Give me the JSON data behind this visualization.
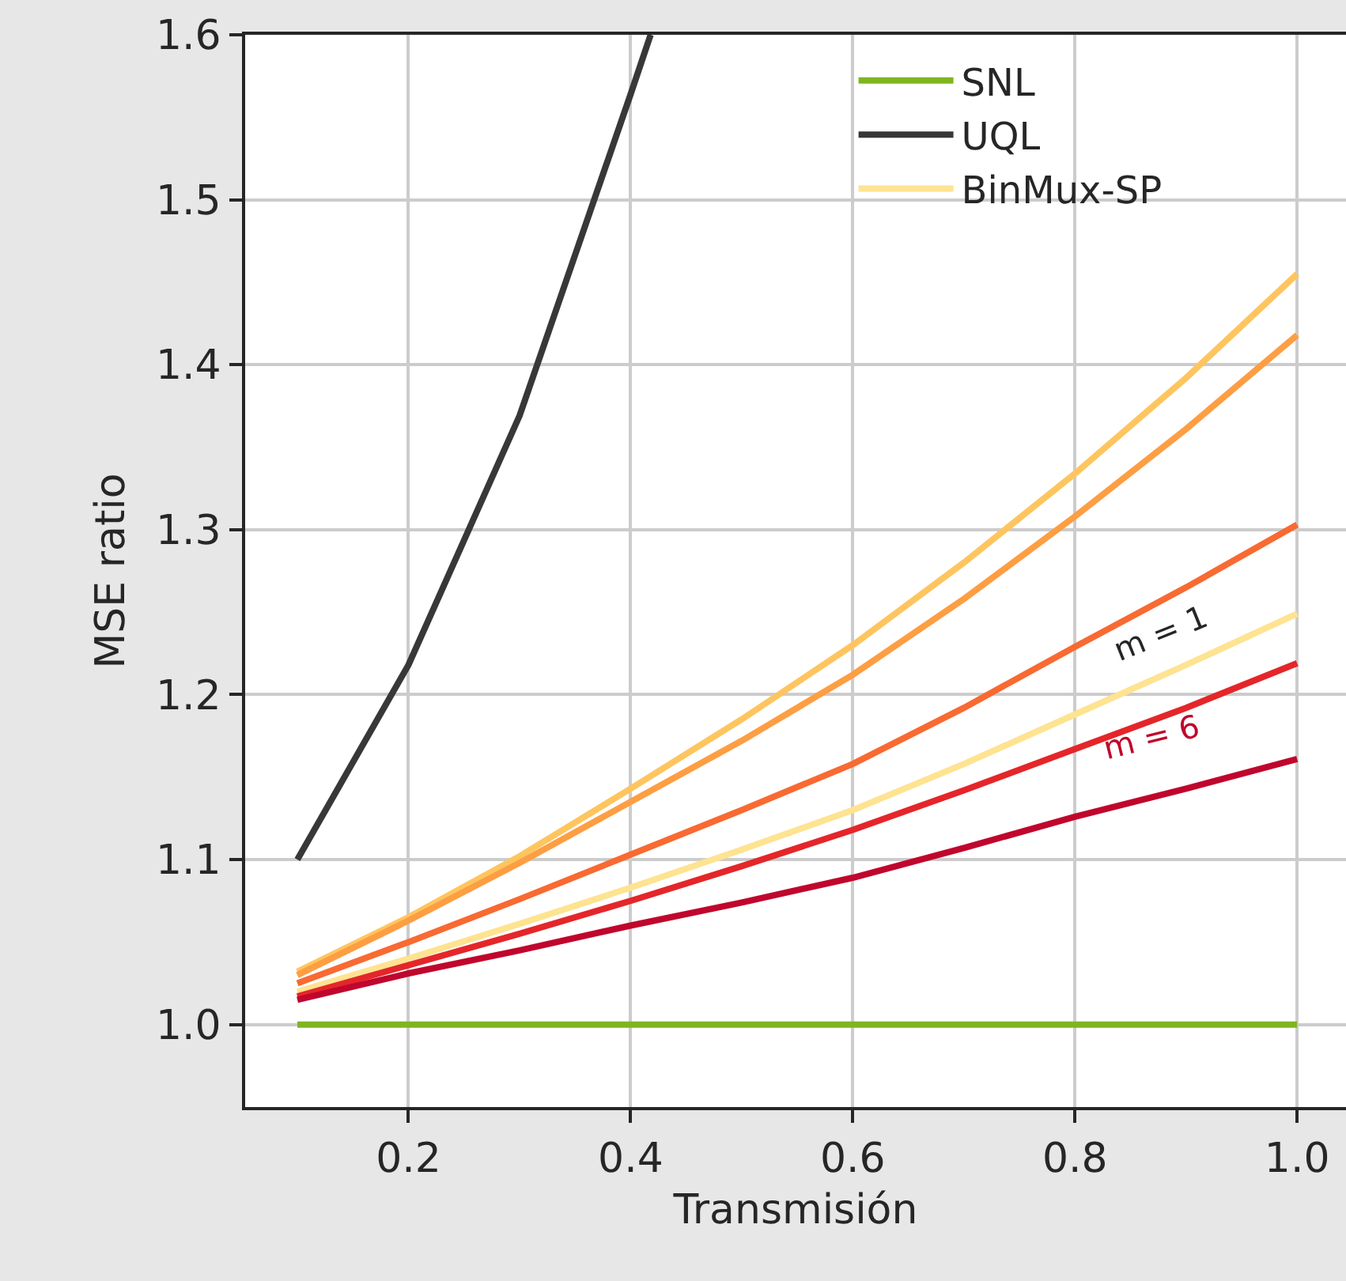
{
  "chart_data": {
    "type": "line",
    "xlabel": "Transmisión",
    "ylabel": "MSE ratio",
    "x": [
      0.1,
      0.2,
      0.3,
      0.4,
      0.5,
      0.6,
      0.7,
      0.8,
      0.9,
      1.0
    ],
    "series": [
      {
        "name": "SNL",
        "color": "#7fb51f",
        "values": [
          1.0,
          1.0,
          1.0,
          1.0,
          1.0,
          1.0,
          1.0,
          1.0,
          1.0,
          1.0
        ]
      },
      {
        "name": "UQL",
        "color": "#383838",
        "x": [
          0.1,
          0.2,
          0.3,
          0.4,
          0.418
        ],
        "values": [
          1.1,
          1.218,
          1.369,
          1.564,
          1.6
        ]
      },
      {
        "name": "BinMux-SP",
        "color": "#fee391",
        "values": [
          1.02,
          1.04,
          1.061,
          1.083,
          1.106,
          1.13,
          1.158,
          1.188,
          1.218,
          1.249
        ]
      },
      {
        "color": "#fec55f",
        "values": [
          1.032,
          1.065,
          1.102,
          1.143,
          1.185,
          1.23,
          1.28,
          1.334,
          1.392,
          1.455
        ]
      },
      {
        "color": "#fd9e43",
        "values": [
          1.03,
          1.063,
          1.098,
          1.135,
          1.172,
          1.212,
          1.258,
          1.308,
          1.361,
          1.418
        ]
      },
      {
        "color": "#f86a32",
        "values": [
          1.025,
          1.05,
          1.076,
          1.103,
          1.13,
          1.158,
          1.192,
          1.229,
          1.265,
          1.303
        ]
      },
      {
        "color": "#e4262a",
        "values": [
          1.017,
          1.036,
          1.055,
          1.075,
          1.096,
          1.118,
          1.142,
          1.167,
          1.192,
          1.219
        ]
      },
      {
        "color": "#c0062d",
        "values": [
          1.015,
          1.031,
          1.045,
          1.06,
          1.074,
          1.089,
          1.107,
          1.126,
          1.143,
          1.161
        ]
      }
    ],
    "annotations": [
      "m = 1",
      "m = 6"
    ],
    "xlim": [
      0.053,
      1.044
    ],
    "xticks": [
      0.2,
      0.4,
      0.6,
      0.8,
      {
        "value": 1.0,
        "label": "1.0"
      }
    ],
    "ylim": [
      0.95,
      1.6
    ],
    "yticks": [
      {
        "value": 1.0,
        "label": "1.0"
      },
      1.1,
      1.2,
      1.3,
      1.4,
      1.5,
      1.6
    ],
    "grid": true,
    "legend": "top right",
    "marker": "none",
    "line_style": "solid"
  }
}
